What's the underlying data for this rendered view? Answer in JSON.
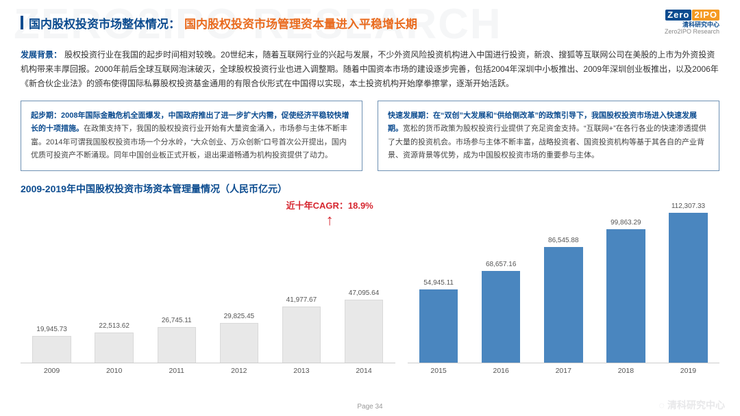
{
  "watermark_text": "ZERO2IPO RESEARCH",
  "colors": {
    "brand_blue": "#0b4b8f",
    "accent_orange": "#e96b1f",
    "cagr_red": "#d6262f",
    "body_text": "#333333",
    "phase_border": "#6d90b3",
    "phase_text": "#444444",
    "bar_left_fill": "#e8e8e8",
    "bar_left_stroke": "#d9d9d9",
    "bar_right_fill": "#4a86bf",
    "axis_color": "#cccccc",
    "bar_label": "#555555",
    "footer": "#999999",
    "wm_corner": "#e8e8ea"
  },
  "title": {
    "main": "国内股权投资市场整体情况：",
    "sub": "国内股权投资市场管理资本量进入平稳增长期"
  },
  "logo": {
    "brand1": "Zero",
    "brand2": "2IPO",
    "cn": "清科研究中心",
    "en": "Zero2IPO Research"
  },
  "background": {
    "label": "发展背景：",
    "text": "股权投资行业在我国的起步时间相对较晚。20世纪末，随着互联网行业的兴起与发展，不少外资风险投资机构进入中国进行投资，新浪、搜狐等互联网公司在美股的上市为外资投资机构带来丰厚回报。2000年前后全球互联网泡沫破灭，全球股权投资行业也进入调整期。随着中国资本市场的建设逐步完善，包括2004年深圳中小板推出、2009年深圳创业板推出，以及2006年《新合伙企业法》的颁布使得国际私募股权投资基金通用的有限合伙形式在中国得以实现，本土投资机构开始摩拳擦掌，逐渐开始活跃。"
  },
  "phase_left": {
    "bold": "起步期：2008年国际金融危机全面爆发，中国政府推出了进一步扩大内需，促使经济平稳较快增长的十项措施。",
    "rest": "在政策支持下，我国的股权投资行业开始有大量资金涌入，市场参与主体不断丰富。2014年可谓我国股权投资市场一个分水岭，“大众创业、万众创新”口号首次公开提出，国内优质可投资产不断涌现。同年中国创业板正式开板，退出渠道畅通为机构投资提供了动力。"
  },
  "phase_right": {
    "bold": "快速发展期：在“双创”大发展和“供给侧改革”的政策引导下，我国股权投资市场进入快速发展期。",
    "rest": "宽松的货币政策为股权投资行业提供了充足资金支持。“互联网+”在各行各业的快速渗透提供了大量的投资机会。市场参与主体不断丰富，战略投资者、国资投资机构等基于其各自的产业背景、资源背景等优势，成为中国股权投资市场的重要参与主体。"
  },
  "chart": {
    "title": "2009-2019年中国股权投资市场资本管理量情况（人民币亿元）",
    "cagr_label": "近十年CAGR：18.9%",
    "ymax": 120000,
    "bar_width_pct": 62,
    "label_fontsize": 10,
    "year_fontsize": 10.5,
    "left_group": {
      "years": [
        "2009",
        "2010",
        "2011",
        "2012",
        "2013",
        "2014"
      ],
      "values": [
        19945.73,
        22513.62,
        26745.11,
        29825.45,
        41977.67,
        47095.64
      ],
      "labels": [
        "19,945.73",
        "22,513.62",
        "26,745.11",
        "29,825.45",
        "41,977.67",
        "47,095.64"
      ]
    },
    "right_group": {
      "years": [
        "2015",
        "2016",
        "2017",
        "2018",
        "2019"
      ],
      "values": [
        54945.11,
        68657.16,
        86545.88,
        99863.29,
        112307.33
      ],
      "labels": [
        "54,945.11",
        "68,657.16",
        "86,545.88",
        "99,863.29",
        "112,307.33"
      ]
    }
  },
  "footer": "Page 34",
  "corner_wm": "清科研究中心"
}
